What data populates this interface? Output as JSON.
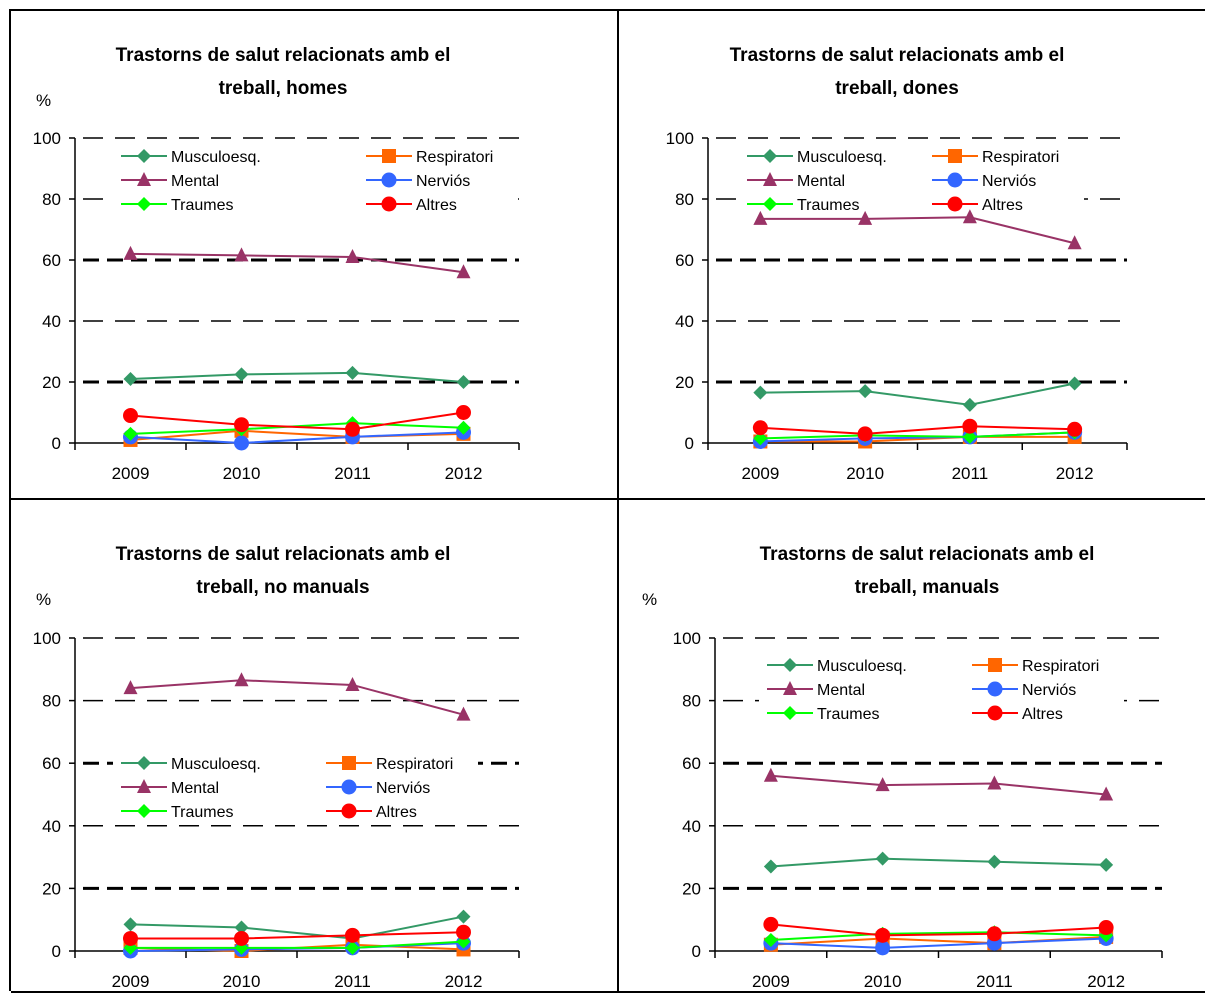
{
  "chart_data": [
    {
      "type": "line",
      "title": [
        "Trastorns de salut relacionats amb el",
        "treball, homes"
      ],
      "ylabel": "%",
      "ylim": [
        0,
        100
      ],
      "yticks": [
        0,
        20,
        40,
        60,
        80,
        100
      ],
      "categories": [
        "2009",
        "2010",
        "2011",
        "2012"
      ],
      "legend_position": "top",
      "series": [
        {
          "name": "Musculoesq.",
          "values": [
            21,
            22.5,
            23,
            20
          ]
        },
        {
          "name": "Respiratori",
          "values": [
            1,
            4,
            2,
            3
          ]
        },
        {
          "name": "Mental",
          "values": [
            62,
            61.5,
            61,
            56
          ]
        },
        {
          "name": "Nerviós",
          "values": [
            2,
            0,
            2,
            3.5
          ]
        },
        {
          "name": "Traumes",
          "values": [
            3,
            4.5,
            6.5,
            5
          ]
        },
        {
          "name": "Altres",
          "values": [
            9,
            6,
            4.5,
            10
          ]
        }
      ]
    },
    {
      "type": "line",
      "title": [
        "Trastorns de salut relacionats amb el",
        "treball, dones"
      ],
      "ylabel": "",
      "ylim": [
        0,
        100
      ],
      "yticks": [
        0,
        20,
        40,
        60,
        80,
        100
      ],
      "categories": [
        "2009",
        "2010",
        "2011",
        "2012"
      ],
      "legend_position": "top",
      "series": [
        {
          "name": "Musculoesq.",
          "values": [
            16.5,
            17,
            12.5,
            19.5
          ]
        },
        {
          "name": "Respiratori",
          "values": [
            0.5,
            0.5,
            2,
            2
          ]
        },
        {
          "name": "Mental",
          "values": [
            73.5,
            73.5,
            74,
            65.5
          ]
        },
        {
          "name": "Nerviós",
          "values": [
            0.5,
            1.5,
            2,
            3.5
          ]
        },
        {
          "name": "Traumes",
          "values": [
            1.5,
            2.5,
            2,
            3.5
          ]
        },
        {
          "name": "Altres",
          "values": [
            5,
            3,
            5.5,
            4.5
          ]
        }
      ]
    },
    {
      "type": "line",
      "title": [
        "Trastorns de salut relacionats amb el",
        "treball, no manuals"
      ],
      "ylabel": "%",
      "ylim": [
        0,
        100
      ],
      "yticks": [
        0,
        20,
        40,
        60,
        80,
        100
      ],
      "categories": [
        "2009",
        "2010",
        "2011",
        "2012"
      ],
      "legend_position": "middle",
      "series": [
        {
          "name": "Musculoesq.",
          "values": [
            8.5,
            7.5,
            4,
            11
          ]
        },
        {
          "name": "Respiratori",
          "values": [
            1,
            0,
            2,
            0.5
          ]
        },
        {
          "name": "Mental",
          "values": [
            84,
            86.5,
            85,
            75.5
          ]
        },
        {
          "name": "Nerviós",
          "values": [
            0,
            0.5,
            1,
            2.5
          ]
        },
        {
          "name": "Traumes",
          "values": [
            1,
            1,
            1,
            3
          ]
        },
        {
          "name": "Altres",
          "values": [
            4,
            4,
            5,
            6
          ]
        }
      ]
    },
    {
      "type": "line",
      "title": [
        "Trastorns de salut relacionats amb el",
        "treball, manuals"
      ],
      "ylabel": "%",
      "ylim": [
        0,
        100
      ],
      "yticks": [
        0,
        20,
        40,
        60,
        80,
        100
      ],
      "categories": [
        "2009",
        "2010",
        "2011",
        "2012"
      ],
      "legend_position": "top",
      "series": [
        {
          "name": "Musculoesq.",
          "values": [
            27,
            29.5,
            28.5,
            27.5
          ]
        },
        {
          "name": "Respiratori",
          "values": [
            2,
            4,
            2.5,
            4.5
          ]
        },
        {
          "name": "Mental",
          "values": [
            56,
            53,
            53.5,
            50
          ]
        },
        {
          "name": "Nerviós",
          "values": [
            2.5,
            1,
            2.5,
            4
          ]
        },
        {
          "name": "Traumes",
          "values": [
            3.5,
            5.5,
            6,
            5
          ]
        },
        {
          "name": "Altres",
          "values": [
            8.5,
            5,
            5.5,
            7.5
          ]
        }
      ]
    }
  ],
  "colors": {
    "Musculoesq.": "#339966",
    "Respiratori": "#FF6600",
    "Mental": "#993366",
    "Nerviós": "#3366FF",
    "Traumes": "#00FF00",
    "Altres": "#FF0000"
  },
  "markers": {
    "Musculoesq.": "diamond",
    "Respiratori": "square",
    "Mental": "triangle",
    "Nerviós": "circle",
    "Traumes": "diamond",
    "Altres": "circle"
  }
}
